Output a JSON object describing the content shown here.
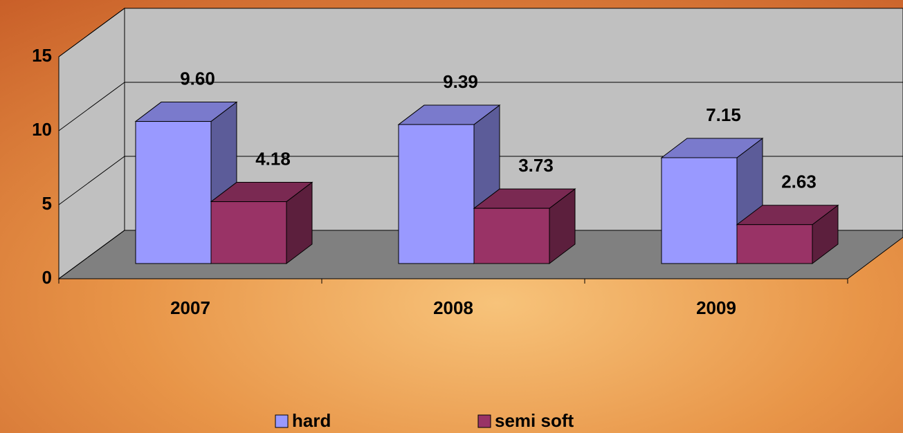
{
  "chart_data": {
    "type": "bar3d",
    "categories": [
      "2007",
      "2008",
      "2009"
    ],
    "series": [
      {
        "name": "hard",
        "color": "#9999ff",
        "values": [
          9.6,
          9.39,
          7.15
        ],
        "value_labels": [
          "9.60",
          "9.39",
          "7.15"
        ]
      },
      {
        "name": "semi soft",
        "color": "#993366",
        "values": [
          4.18,
          3.73,
          2.63
        ],
        "value_labels": [
          "4.18",
          "3.73",
          "2.63"
        ]
      }
    ],
    "ylim": [
      0,
      15
    ],
    "yticks": [
      0,
      5,
      10,
      15
    ],
    "grid": true,
    "legend": "bottom"
  }
}
